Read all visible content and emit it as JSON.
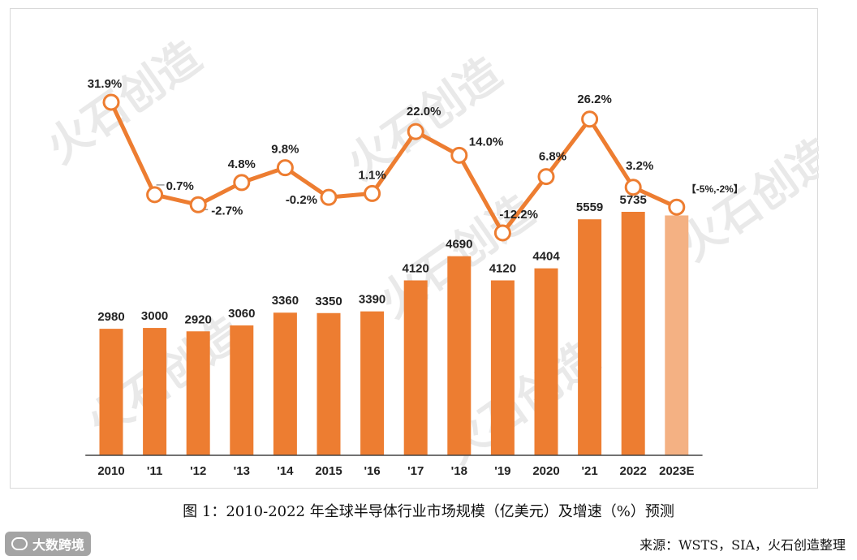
{
  "chart_data": {
    "type": "bar+line",
    "categories": [
      "2010",
      "'11",
      "'12",
      "'13",
      "'14",
      "2015",
      "'16",
      "'17",
      "'18",
      "'19",
      "2020",
      "'21",
      "2022",
      "2023E"
    ],
    "bar_series": {
      "name": "市场规模（亿美元）",
      "values": [
        2980,
        3000,
        2920,
        3060,
        3360,
        3350,
        3390,
        4120,
        4690,
        4120,
        4404,
        5559,
        5735,
        5650
      ],
      "labels": [
        "2980",
        "3000",
        "2920",
        "3060",
        "3360",
        "3350",
        "3390",
        "4120",
        "4690",
        "4120",
        "4404",
        "5559",
        "5735",
        ""
      ],
      "color": "#ED7D31",
      "forecast_color": "#F4B183"
    },
    "line_series": {
      "name": "增速（%）",
      "values": [
        31.9,
        0.7,
        -2.7,
        4.8,
        9.8,
        -0.2,
        1.1,
        22.0,
        14.0,
        -12.2,
        6.8,
        26.2,
        3.2,
        -3.5
      ],
      "labels": [
        "31.9%",
        "0.7%",
        "-2.7%",
        "4.8%",
        "9.8%",
        "-0.2%",
        "1.1%",
        "22.0%",
        "14.0%",
        "-12.2%",
        "6.8%",
        "26.2%",
        "3.2%",
        "【-5%,-2%】"
      ],
      "color": "#ED7D31"
    },
    "title": "图 1：2010-2022 年全球半导体行业市场规模（亿美元）及增速（%）预测",
    "source": "来源：WSTS，SIA，火石创造整理"
  },
  "watermark": "火石创造",
  "brand": "大数跨境",
  "colors": {
    "accent": "#ED7D31",
    "forecast": "#F4B183"
  }
}
